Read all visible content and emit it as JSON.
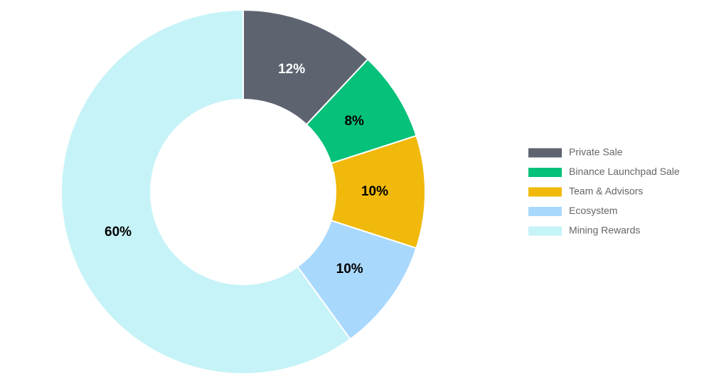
{
  "chart_data": {
    "type": "donut",
    "categories": [
      "Private Sale",
      "Binance Launchpad Sale",
      "Team & Advisors",
      "Ecosystem",
      "Mining Rewards"
    ],
    "values": [
      12,
      8,
      10,
      10,
      60
    ],
    "value_labels": [
      "12%",
      "8%",
      "10%",
      "10%",
      "60%"
    ],
    "colors": [
      "#5d6470",
      "#05c17a",
      "#f0b90b",
      "#a9d8fd",
      "#c6f3f7"
    ],
    "legend": "right"
  }
}
